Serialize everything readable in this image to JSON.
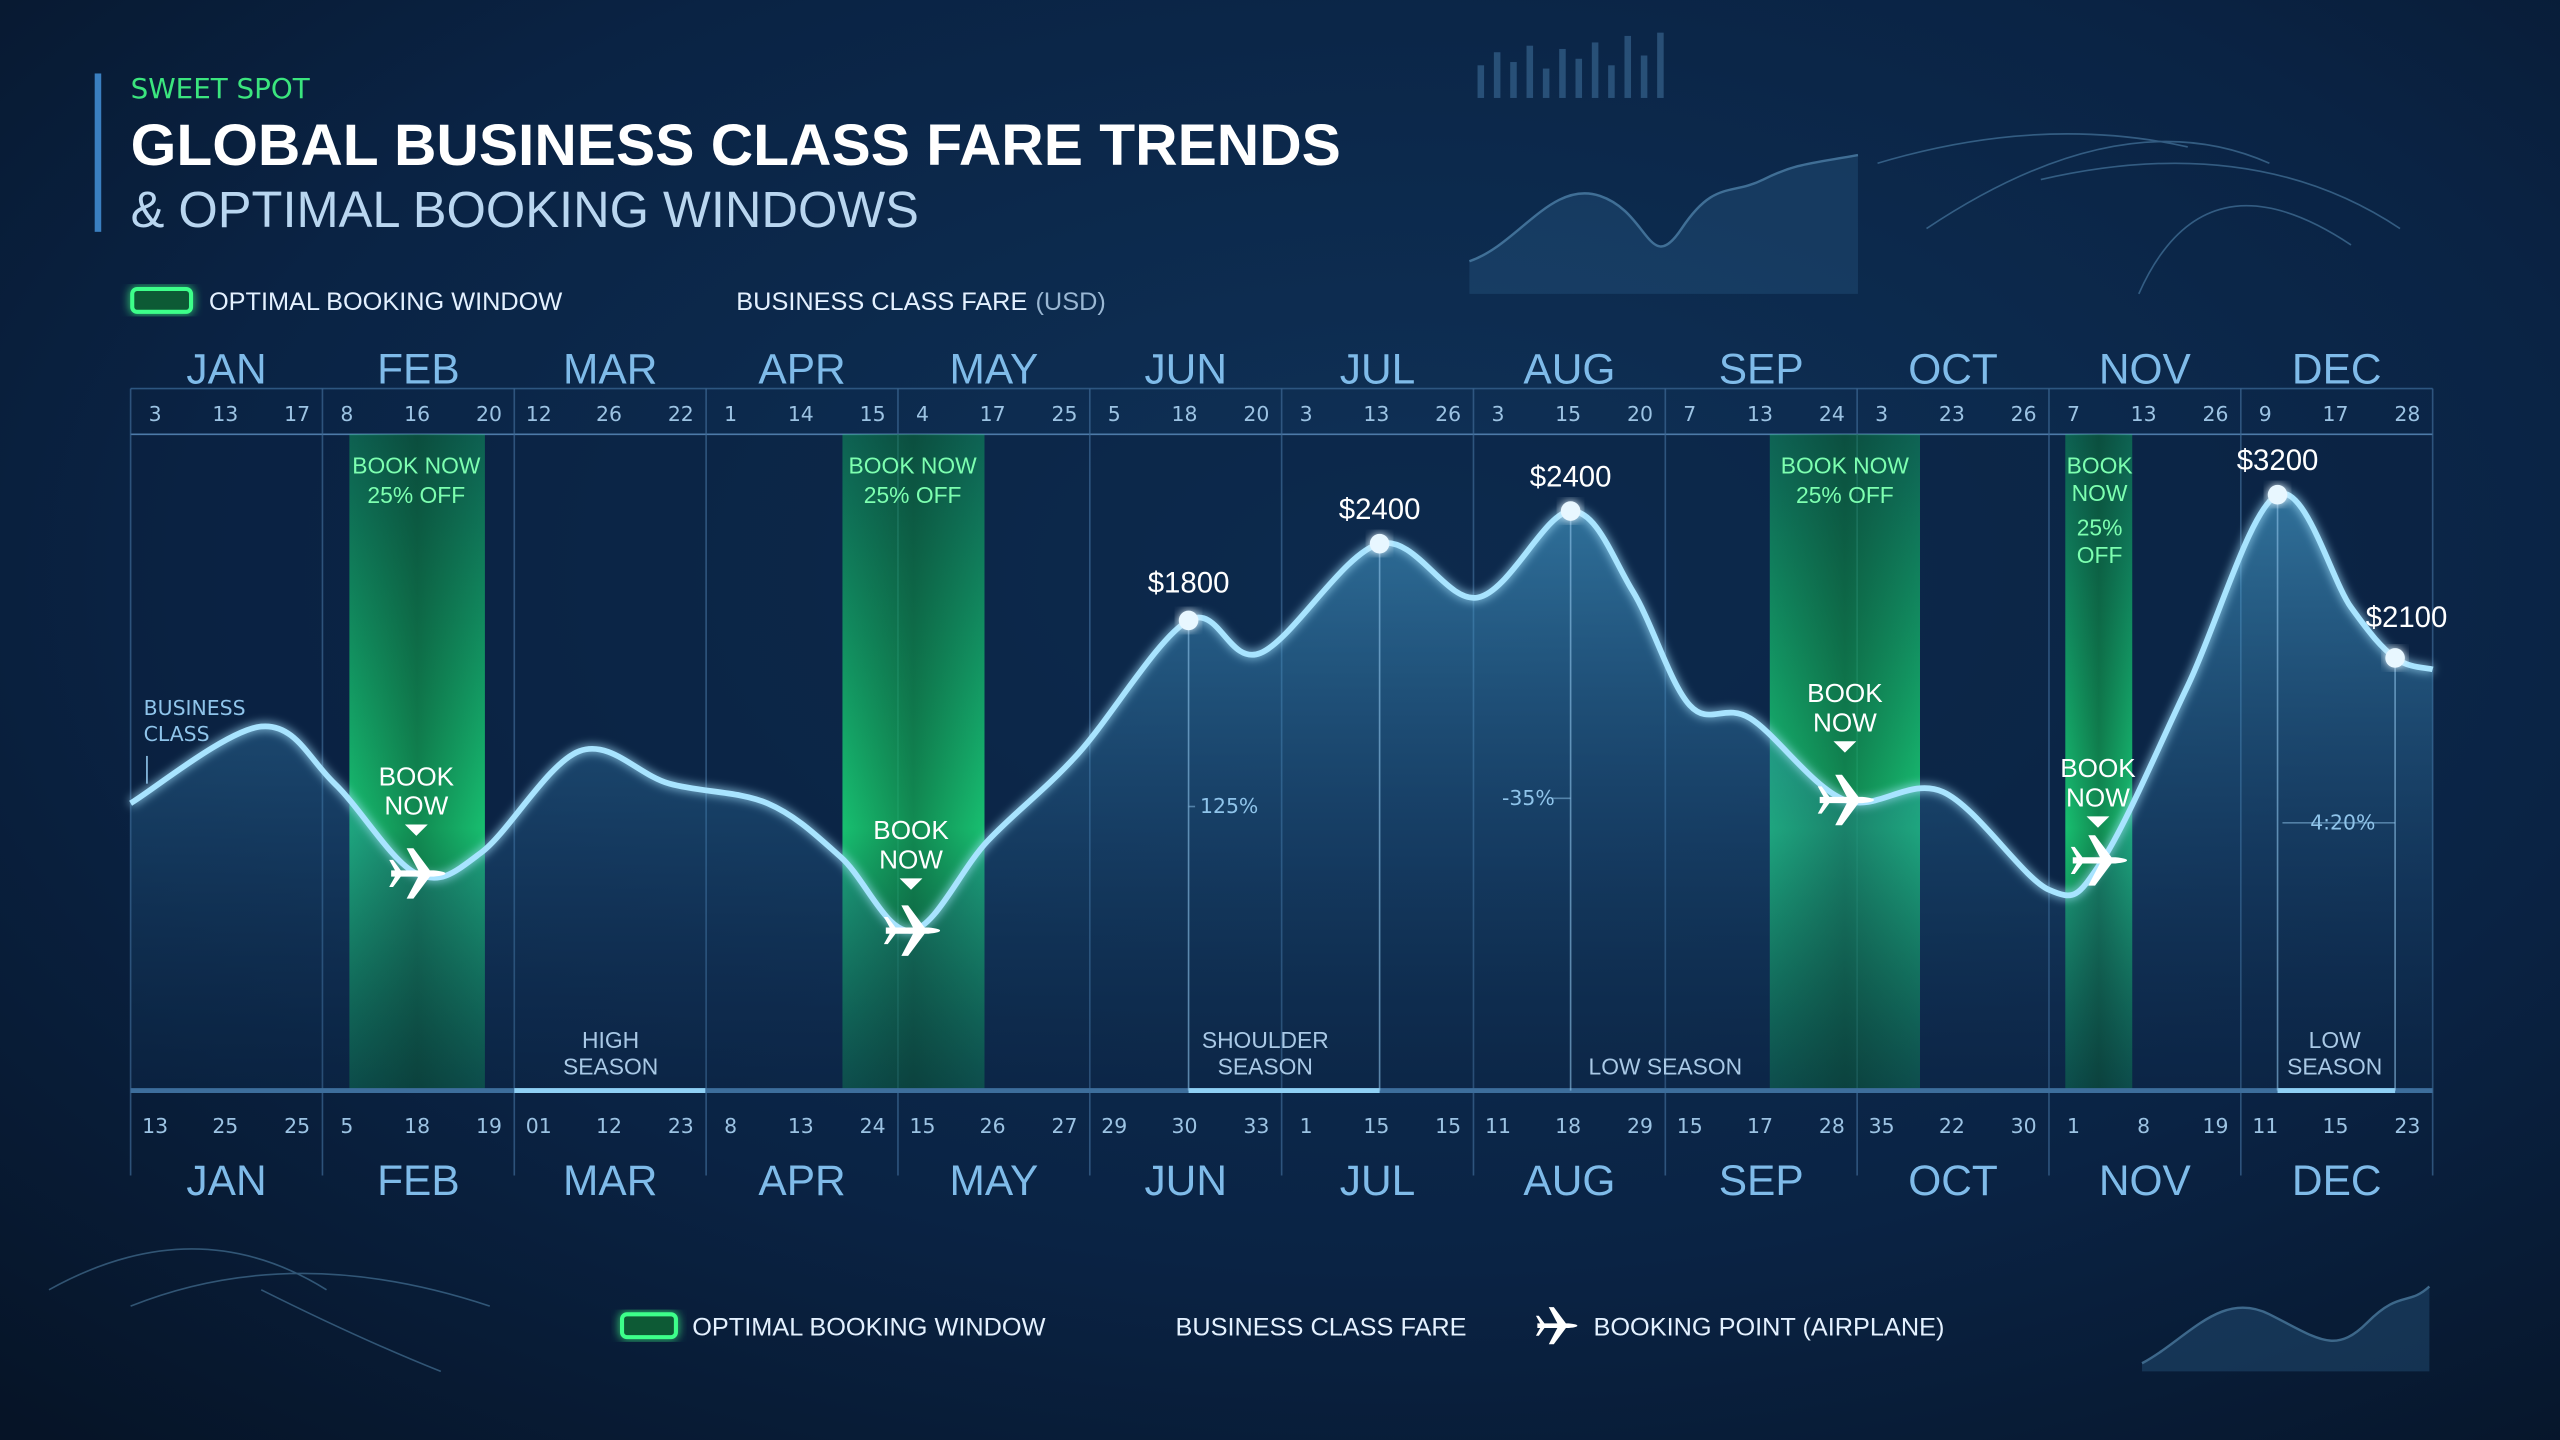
{
  "header": {
    "kicker": "SWEET SPOT",
    "title": "GLOBAL BUSINESS CLASS FARE TRENDS",
    "subtitle": "& OPTIMAL BOOKING WINDOWS"
  },
  "top_legend": {
    "window": "OPTIMAL BOOKING WINDOW",
    "fare": "BUSINESS CLASS FARE",
    "fare_unit": "(USD)"
  },
  "months": [
    "JAN",
    "FEB",
    "MAR",
    "APR",
    "MAY",
    "JUN",
    "JUL",
    "AUG",
    "SEP",
    "OCT",
    "NOV",
    "DEC"
  ],
  "top_days": [
    [
      "3",
      "13",
      "17"
    ],
    [
      "8",
      "16",
      "20"
    ],
    [
      "12",
      "26",
      "22"
    ],
    [
      "1",
      "14",
      "15"
    ],
    [
      "4",
      "17",
      "25"
    ],
    [
      "5",
      "18",
      "20"
    ],
    [
      "3",
      "13",
      "26"
    ],
    [
      "3",
      "15",
      "20"
    ],
    [
      "7",
      "13",
      "24"
    ],
    [
      "3",
      "23",
      "26"
    ],
    [
      "7",
      "13",
      "26"
    ],
    [
      "9",
      "17",
      "28"
    ]
  ],
  "bottom_days": [
    [
      "13",
      "25",
      "25"
    ],
    [
      "5",
      "18",
      "19"
    ],
    [
      "01",
      "12",
      "23"
    ],
    [
      "8",
      "13",
      "24"
    ],
    [
      "15",
      "26",
      "27"
    ],
    [
      "29",
      "30",
      "33"
    ],
    [
      "1",
      "15",
      "15"
    ],
    [
      "11",
      "18",
      "29"
    ],
    [
      "15",
      "17",
      "28"
    ],
    [
      "35",
      "22",
      "30"
    ],
    [
      "1",
      "8",
      "19"
    ],
    [
      "11",
      "15",
      "23"
    ]
  ],
  "axis_note": [
    "BUSINESS",
    "CLASS"
  ],
  "windows": [
    [
      "BOOK NOW",
      "25% OFF"
    ],
    [
      "BOOK NOW",
      "25% OFF"
    ],
    [
      "BOOK NOW",
      "25% OFF"
    ],
    [
      "BOOK",
      "NOW",
      "25%",
      "OFF"
    ]
  ],
  "booking_markers": [
    [
      "BOOK",
      "NOW"
    ],
    [
      "BOOK",
      "NOW"
    ],
    [
      "BOOK",
      "NOW"
    ],
    [
      "BOOK",
      "NOW"
    ]
  ],
  "fare_labels": [
    "$1800",
    "$2400",
    "$2400",
    "$3200",
    "$2100"
  ],
  "curve_notes": [
    "125%",
    "-35%",
    "4:20%"
  ],
  "seasons": [
    [
      "HIGH",
      "SEASON"
    ],
    [
      "SHOULDER",
      "SEASON"
    ],
    [
      "LOW SEASON"
    ],
    [
      "LOW",
      "SEASON"
    ]
  ],
  "bottom_legend": {
    "window": "OPTIMAL BOOKING WINDOW",
    "fare": "BUSINESS CLASS FARE",
    "airplane": "BOOKING POINT (AIRPLANE)"
  }
}
